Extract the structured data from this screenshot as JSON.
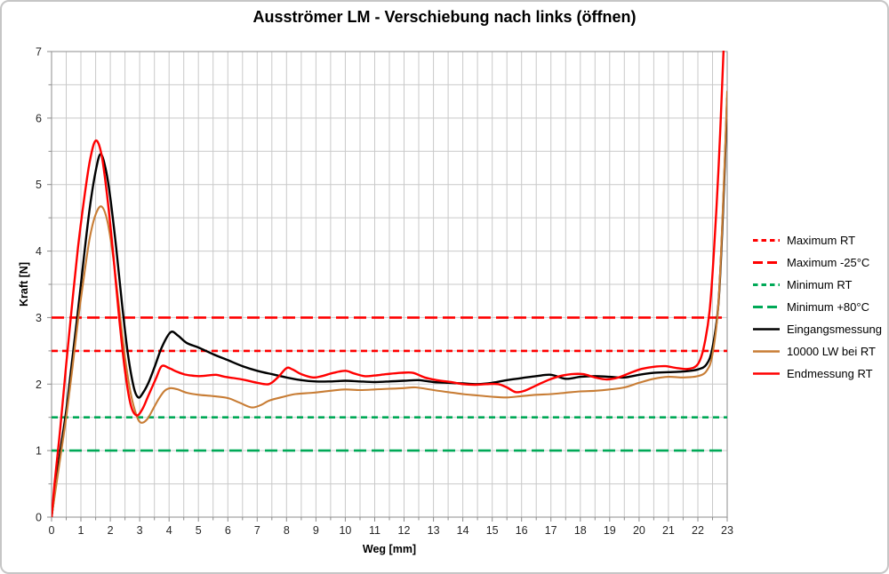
{
  "title": "Ausströmer LM - Verschiebung nach links (öffnen)",
  "chart_data": {
    "type": "line",
    "title": "Ausströmer LM - Verschiebung nach links (öffnen)",
    "xlabel": "Weg [mm]",
    "ylabel": "Kraft [N]",
    "xlim": [
      0,
      23
    ],
    "ylim": [
      0,
      7
    ],
    "x_tick_step": 1,
    "y_tick_step": 1,
    "minor_grid_step": 0.5,
    "grid": true,
    "legend_position": "right",
    "colors": {
      "grid": "#c9c9c9",
      "plot_border": "#a0a0a0",
      "tick": "#8c8c8c",
      "red": "#ff0000",
      "green": "#00a957",
      "black": "#000000",
      "orange": "#c87d35"
    },
    "reference_lines": [
      {
        "label": "Maximum RT",
        "value": 2.5,
        "color": "#ff0000",
        "dash": "short"
      },
      {
        "label": "Maximum -25°C",
        "value": 3.0,
        "color": "#ff0000",
        "dash": "long"
      },
      {
        "label": "Minimum RT",
        "value": 1.5,
        "color": "#00a957",
        "dash": "short"
      },
      {
        "label": "Minimum +80°C",
        "value": 1.0,
        "color": "#00a957",
        "dash": "long"
      }
    ],
    "series": [
      {
        "name": "Eingangsmessung",
        "color": "#000000",
        "width": 2.4,
        "points": [
          [
            0,
            0
          ],
          [
            0.1,
            0.35
          ],
          [
            0.3,
            1.0
          ],
          [
            0.5,
            1.6
          ],
          [
            0.7,
            2.35
          ],
          [
            0.9,
            3.1
          ],
          [
            1.1,
            3.9
          ],
          [
            1.3,
            4.65
          ],
          [
            1.5,
            5.2
          ],
          [
            1.67,
            5.46
          ],
          [
            1.85,
            5.22
          ],
          [
            2.0,
            4.8
          ],
          [
            2.2,
            4.05
          ],
          [
            2.4,
            3.2
          ],
          [
            2.6,
            2.45
          ],
          [
            2.8,
            1.95
          ],
          [
            2.95,
            1.8
          ],
          [
            3.1,
            1.86
          ],
          [
            3.3,
            2.02
          ],
          [
            3.5,
            2.25
          ],
          [
            3.75,
            2.55
          ],
          [
            4.05,
            2.78
          ],
          [
            4.3,
            2.73
          ],
          [
            4.6,
            2.62
          ],
          [
            5.0,
            2.55
          ],
          [
            5.5,
            2.45
          ],
          [
            6.0,
            2.36
          ],
          [
            6.5,
            2.27
          ],
          [
            7.0,
            2.2
          ],
          [
            7.5,
            2.15
          ],
          [
            8.0,
            2.1
          ],
          [
            8.5,
            2.06
          ],
          [
            9.0,
            2.04
          ],
          [
            9.5,
            2.04
          ],
          [
            10.0,
            2.05
          ],
          [
            10.5,
            2.04
          ],
          [
            11.0,
            2.03
          ],
          [
            11.5,
            2.04
          ],
          [
            12.0,
            2.05
          ],
          [
            12.5,
            2.06
          ],
          [
            13.0,
            2.03
          ],
          [
            13.5,
            2.02
          ],
          [
            14.0,
            2.01
          ],
          [
            14.5,
            2.0
          ],
          [
            15.0,
            2.02
          ],
          [
            15.5,
            2.06
          ],
          [
            16.0,
            2.09
          ],
          [
            16.5,
            2.12
          ],
          [
            17.0,
            2.14
          ],
          [
            17.5,
            2.08
          ],
          [
            18.0,
            2.11
          ],
          [
            18.5,
            2.12
          ],
          [
            19.0,
            2.11
          ],
          [
            19.5,
            2.1
          ],
          [
            20.0,
            2.14
          ],
          [
            20.5,
            2.17
          ],
          [
            21.0,
            2.18
          ],
          [
            21.5,
            2.19
          ],
          [
            22.0,
            2.22
          ],
          [
            22.3,
            2.3
          ],
          [
            22.5,
            2.55
          ],
          [
            22.7,
            3.2
          ],
          [
            22.85,
            4.5
          ],
          [
            23.0,
            6.3
          ]
        ]
      },
      {
        "name": "10000 LW bei RT",
        "color": "#c87d35",
        "width": 2.1,
        "points": [
          [
            0,
            0
          ],
          [
            0.1,
            0.3
          ],
          [
            0.3,
            0.9
          ],
          [
            0.5,
            1.5
          ],
          [
            0.7,
            2.2
          ],
          [
            0.9,
            2.95
          ],
          [
            1.1,
            3.6
          ],
          [
            1.3,
            4.2
          ],
          [
            1.5,
            4.55
          ],
          [
            1.7,
            4.67
          ],
          [
            1.9,
            4.45
          ],
          [
            2.1,
            3.9
          ],
          [
            2.3,
            3.15
          ],
          [
            2.5,
            2.4
          ],
          [
            2.7,
            1.85
          ],
          [
            2.9,
            1.52
          ],
          [
            3.05,
            1.42
          ],
          [
            3.25,
            1.47
          ],
          [
            3.45,
            1.62
          ],
          [
            3.65,
            1.78
          ],
          [
            3.85,
            1.9
          ],
          [
            4.05,
            1.94
          ],
          [
            4.3,
            1.92
          ],
          [
            4.6,
            1.87
          ],
          [
            5.0,
            1.84
          ],
          [
            5.5,
            1.82
          ],
          [
            6.0,
            1.79
          ],
          [
            6.4,
            1.72
          ],
          [
            6.8,
            1.65
          ],
          [
            7.1,
            1.68
          ],
          [
            7.4,
            1.75
          ],
          [
            7.8,
            1.8
          ],
          [
            8.3,
            1.85
          ],
          [
            8.9,
            1.87
          ],
          [
            9.5,
            1.9
          ],
          [
            10.0,
            1.92
          ],
          [
            10.5,
            1.91
          ],
          [
            11.0,
            1.92
          ],
          [
            11.5,
            1.93
          ],
          [
            12.0,
            1.94
          ],
          [
            12.4,
            1.95
          ],
          [
            13.0,
            1.91
          ],
          [
            13.5,
            1.88
          ],
          [
            14.0,
            1.85
          ],
          [
            14.5,
            1.83
          ],
          [
            15.0,
            1.81
          ],
          [
            15.5,
            1.8
          ],
          [
            16.0,
            1.82
          ],
          [
            16.5,
            1.84
          ],
          [
            17.0,
            1.85
          ],
          [
            17.5,
            1.87
          ],
          [
            18.0,
            1.89
          ],
          [
            18.5,
            1.9
          ],
          [
            19.0,
            1.92
          ],
          [
            19.5,
            1.95
          ],
          [
            20.0,
            2.02
          ],
          [
            20.5,
            2.08
          ],
          [
            21.0,
            2.11
          ],
          [
            21.5,
            2.1
          ],
          [
            22.0,
            2.12
          ],
          [
            22.3,
            2.2
          ],
          [
            22.5,
            2.45
          ],
          [
            22.7,
            3.2
          ],
          [
            22.85,
            4.6
          ],
          [
            23.0,
            6.4
          ]
        ]
      },
      {
        "name": "Endmessung RT",
        "color": "#ff0000",
        "width": 2.4,
        "points": [
          [
            0,
            0
          ],
          [
            0.1,
            0.5
          ],
          [
            0.3,
            1.35
          ],
          [
            0.5,
            2.3
          ],
          [
            0.7,
            3.2
          ],
          [
            0.9,
            4.05
          ],
          [
            1.1,
            4.75
          ],
          [
            1.3,
            5.35
          ],
          [
            1.5,
            5.66
          ],
          [
            1.7,
            5.45
          ],
          [
            1.9,
            4.8
          ],
          [
            2.1,
            3.95
          ],
          [
            2.3,
            3.0
          ],
          [
            2.5,
            2.2
          ],
          [
            2.7,
            1.68
          ],
          [
            2.9,
            1.53
          ],
          [
            3.1,
            1.63
          ],
          [
            3.3,
            1.83
          ],
          [
            3.55,
            2.08
          ],
          [
            3.75,
            2.27
          ],
          [
            4.0,
            2.24
          ],
          [
            4.25,
            2.19
          ],
          [
            4.5,
            2.15
          ],
          [
            4.75,
            2.13
          ],
          [
            5.0,
            2.12
          ],
          [
            5.3,
            2.13
          ],
          [
            5.6,
            2.14
          ],
          [
            5.9,
            2.11
          ],
          [
            6.2,
            2.09
          ],
          [
            6.6,
            2.06
          ],
          [
            7.0,
            2.02
          ],
          [
            7.4,
            2.0
          ],
          [
            7.7,
            2.1
          ],
          [
            8.0,
            2.24
          ],
          [
            8.2,
            2.22
          ],
          [
            8.5,
            2.15
          ],
          [
            8.9,
            2.1
          ],
          [
            9.2,
            2.12
          ],
          [
            9.6,
            2.17
          ],
          [
            10.0,
            2.2
          ],
          [
            10.3,
            2.16
          ],
          [
            10.65,
            2.12
          ],
          [
            11.0,
            2.13
          ],
          [
            11.4,
            2.15
          ],
          [
            11.9,
            2.17
          ],
          [
            12.3,
            2.17
          ],
          [
            12.7,
            2.1
          ],
          [
            13.1,
            2.06
          ],
          [
            13.6,
            2.03
          ],
          [
            14.0,
            2.0
          ],
          [
            14.4,
            1.99
          ],
          [
            14.8,
            2.0
          ],
          [
            15.2,
            2.0
          ],
          [
            15.5,
            1.95
          ],
          [
            15.8,
            1.88
          ],
          [
            16.1,
            1.9
          ],
          [
            16.5,
            1.98
          ],
          [
            16.9,
            2.06
          ],
          [
            17.3,
            2.12
          ],
          [
            17.7,
            2.15
          ],
          [
            18.1,
            2.15
          ],
          [
            18.5,
            2.1
          ],
          [
            18.9,
            2.07
          ],
          [
            19.3,
            2.1
          ],
          [
            19.7,
            2.17
          ],
          [
            20.1,
            2.23
          ],
          [
            20.5,
            2.26
          ],
          [
            20.9,
            2.27
          ],
          [
            21.3,
            2.24
          ],
          [
            21.7,
            2.23
          ],
          [
            22.0,
            2.3
          ],
          [
            22.2,
            2.55
          ],
          [
            22.4,
            3.1
          ],
          [
            22.55,
            4.0
          ],
          [
            22.7,
            5.2
          ],
          [
            22.8,
            6.2
          ],
          [
            22.9,
            7.3
          ]
        ]
      }
    ],
    "legend": [
      {
        "label": "Maximum RT",
        "color": "#ff0000",
        "dash": "short"
      },
      {
        "label": "Maximum -25°C",
        "color": "#ff0000",
        "dash": "long"
      },
      {
        "label": "Minimum RT",
        "color": "#00a957",
        "dash": "short"
      },
      {
        "label": "Minimum +80°C",
        "color": "#00a957",
        "dash": "long"
      },
      {
        "label": "Eingangsmessung",
        "color": "#000000",
        "dash": "solid"
      },
      {
        "label": "10000 LW bei RT",
        "color": "#c87d35",
        "dash": "solid"
      },
      {
        "label": "Endmessung RT",
        "color": "#ff0000",
        "dash": "solid"
      }
    ],
    "x_ticks": [
      0,
      1,
      2,
      3,
      4,
      5,
      6,
      7,
      8,
      9,
      10,
      11,
      12,
      13,
      14,
      15,
      16,
      17,
      18,
      19,
      20,
      21,
      22,
      23
    ],
    "y_ticks": [
      0,
      1,
      2,
      3,
      4,
      5,
      6,
      7
    ]
  }
}
